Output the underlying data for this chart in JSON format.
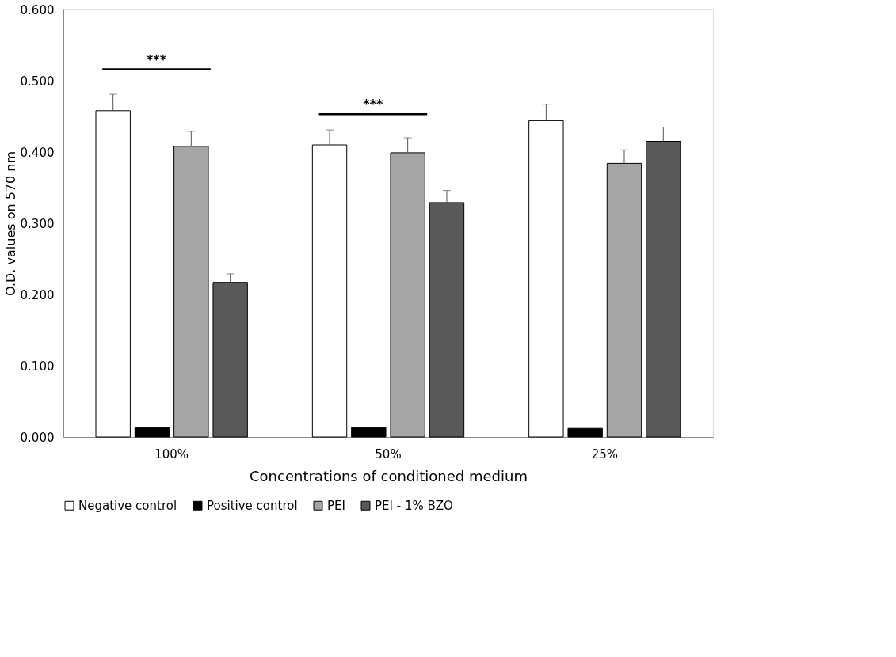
{
  "chart_data": {
    "type": "bar",
    "xlabel": "Concentrations of conditioned medium",
    "ylabel": "O.D. values on 570 nm",
    "categories": [
      "100%",
      "50%",
      "25%"
    ],
    "series": [
      {
        "name": "Negative control",
        "color": "#ffffff",
        "values": [
          0.458,
          0.41,
          0.444
        ],
        "errors": [
          0.023,
          0.021,
          0.023
        ]
      },
      {
        "name": "Positive control",
        "color": "#000000",
        "values": [
          0.013,
          0.013,
          0.012
        ]
      },
      {
        "name": "PEI",
        "color": "#a5a5a5",
        "values": [
          0.408,
          0.399,
          0.384
        ],
        "errors": [
          0.021,
          0.021,
          0.019
        ]
      },
      {
        "name": "PEI - 1% BZO",
        "color": "#595959",
        "values": [
          0.217,
          0.329,
          0.415
        ],
        "errors": [
          0.012,
          0.017,
          0.02
        ]
      }
    ],
    "annotations": [
      "***",
      "***"
    ],
    "ylim": [
      0,
      0.6
    ],
    "yticks": [
      {
        "value": 0,
        "label": "0.000"
      },
      {
        "value": 0.1,
        "label": "0.100"
      },
      {
        "value": 0.2,
        "label": "0.200"
      },
      {
        "value": 0.3,
        "label": "0.300"
      },
      {
        "value": 0.4,
        "label": "0.400"
      },
      {
        "value": 0.5,
        "label": "0.500"
      },
      {
        "value": 0.6,
        "label": "0.600"
      }
    ],
    "grid": false,
    "legend": "bottom"
  }
}
